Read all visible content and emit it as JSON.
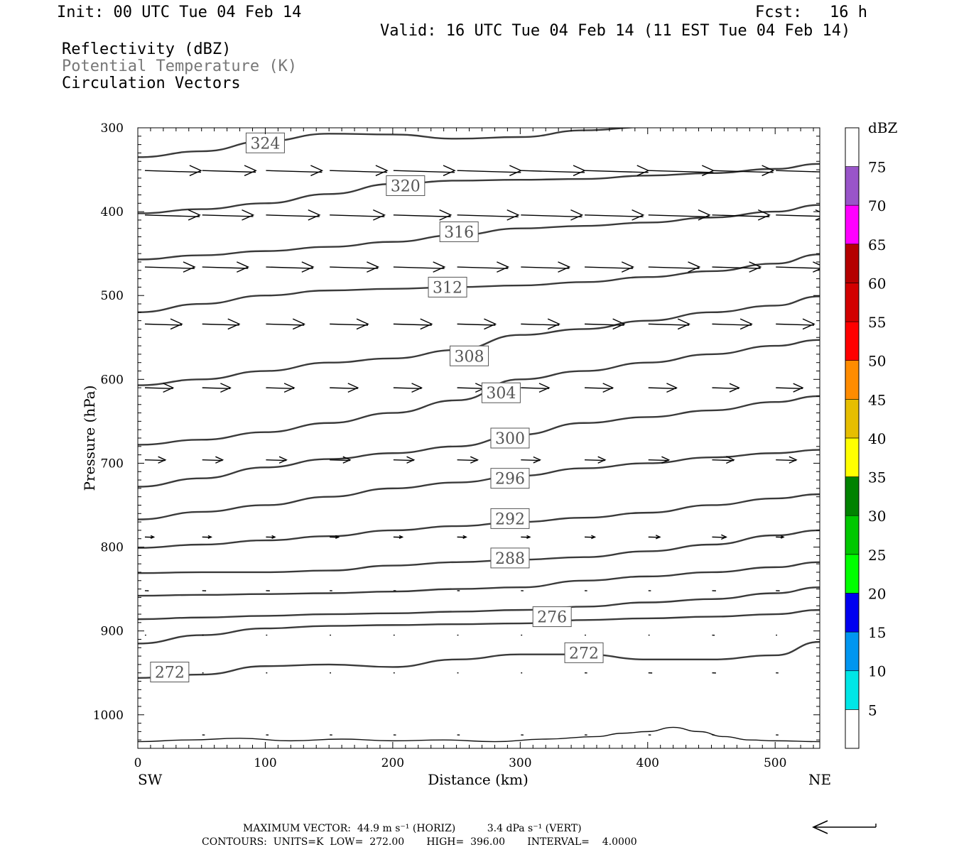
{
  "header": {
    "init": "Init: 00 UTC Tue 04 Feb 14",
    "fcst_label": "Fcst:",
    "fcst_value": "16 h",
    "valid": "Valid: 16 UTC Tue 04 Feb 14 (11 EST Tue 04 Feb 14)",
    "field1": "Reflectivity (dBZ)",
    "field2": "Potential Temperature (K)",
    "field3": "Circulation Vectors"
  },
  "footer": {
    "line1": "MAXIMUM VECTOR:  44.9 m s⁻¹ (HORIZ)          3.4 dPa s⁻¹ (VERT)",
    "line2": "CONTOURS:  UNITS=K  LOW=  272.00       HIGH=  396.00       INTERVAL=    4.0000"
  },
  "colors": {
    "contour": "#3a3a3a",
    "potential_temperature_label": "#777777"
  },
  "chart_data": {
    "type": "line",
    "xlabel": "Distance (km)",
    "ylabel": "Pressure (hPa)",
    "xlim": [
      0,
      535
    ],
    "ylim": [
      1040,
      300
    ],
    "y_scale": "pressure (top 300 hPa, decreasing upward)",
    "xticks": [
      0,
      100,
      200,
      300,
      400,
      500
    ],
    "yticks": [
      300,
      400,
      500,
      600,
      700,
      800,
      900,
      1000
    ],
    "x_endpoints": {
      "left": "SW",
      "right": "NE"
    },
    "colorbar": {
      "unit": "dBZ",
      "labels": [
        "5",
        "10",
        "15",
        "20",
        "25",
        "30",
        "35",
        "40",
        "45",
        "50",
        "55",
        "60",
        "65",
        "70",
        "75"
      ],
      "colors": [
        "#ffffff",
        "#00e6e6",
        "#0096f0",
        "#0000f0",
        "#00ff00",
        "#00c800",
        "#008200",
        "#ffff00",
        "#e6be00",
        "#ff8c00",
        "#ff0000",
        "#d20000",
        "#b40000",
        "#ff00ff",
        "#9955c9",
        "#ffffff"
      ]
    },
    "series": [
      {
        "label": "324",
        "x": [
          0,
          50,
          100,
          150,
          200,
          250,
          300,
          350,
          400
        ],
        "y": [
          335,
          328,
          316,
          307,
          308,
          313,
          311,
          303,
          299
        ],
        "label_at": [
          100,
          318
        ]
      },
      {
        "label": "320",
        "x": [
          0,
          50,
          100,
          150,
          200,
          250,
          300,
          350,
          400,
          450,
          500,
          535
        ],
        "y": [
          402,
          397,
          390,
          379,
          367,
          363,
          362,
          361,
          357,
          354,
          349,
          343
        ],
        "label_at": [
          210,
          369
        ]
      },
      {
        "label": "316",
        "x": [
          0,
          50,
          100,
          150,
          200,
          250,
          300,
          350,
          400,
          450,
          500,
          535
        ],
        "y": [
          457,
          452,
          447,
          442,
          436,
          428,
          420,
          417,
          413,
          407,
          400,
          392
        ],
        "label_at": [
          252,
          424
        ]
      },
      {
        "label": "312",
        "x": [
          0,
          50,
          100,
          150,
          200,
          250,
          300,
          350,
          400,
          450,
          500,
          535
        ],
        "y": [
          520,
          510,
          500,
          494,
          492,
          490,
          488,
          484,
          478,
          471,
          462,
          451
        ],
        "label_at": [
          243,
          490
        ]
      },
      {
        "label": "308",
        "x": [
          0,
          50,
          100,
          150,
          200,
          250,
          300,
          350,
          400,
          450,
          500,
          535
        ],
        "y": [
          607,
          600,
          590,
          580,
          575,
          565,
          547,
          540,
          530,
          520,
          512,
          501
        ],
        "label_at": [
          260,
          572
        ]
      },
      {
        "label": "304",
        "x": [
          0,
          50,
          100,
          150,
          200,
          250,
          300,
          350,
          400,
          450,
          500,
          535
        ],
        "y": [
          678,
          672,
          663,
          652,
          640,
          625,
          600,
          590,
          580,
          570,
          560,
          553
        ],
        "label_at": [
          285,
          616
        ]
      },
      {
        "label": "300",
        "x": [
          0,
          50,
          100,
          150,
          200,
          250,
          300,
          350,
          400,
          450,
          500,
          535
        ],
        "y": [
          728,
          718,
          705,
          695,
          688,
          680,
          666,
          652,
          645,
          637,
          627,
          620
        ],
        "label_at": [
          292,
          670
        ]
      },
      {
        "label": "296",
        "x": [
          0,
          50,
          100,
          150,
          200,
          250,
          300,
          350,
          400,
          450,
          500,
          535
        ],
        "y": [
          767,
          758,
          750,
          740,
          730,
          723,
          715,
          706,
          700,
          693,
          688,
          684
        ],
        "label_at": [
          292,
          718
        ]
      },
      {
        "label": "292",
        "x": [
          0,
          50,
          100,
          150,
          200,
          250,
          300,
          350,
          400,
          450,
          500,
          535
        ],
        "y": [
          801,
          797,
          792,
          787,
          780,
          775,
          770,
          765,
          759,
          750,
          742,
          737
        ],
        "label_at": [
          292,
          766
        ]
      },
      {
        "label": "288",
        "x": [
          0,
          50,
          100,
          150,
          200,
          250,
          300,
          350,
          400,
          450,
          500,
          535
        ],
        "y": [
          831,
          830,
          830,
          828,
          822,
          818,
          815,
          812,
          805,
          797,
          786,
          780
        ],
        "label_at": [
          292,
          813
        ]
      },
      {
        "label": "",
        "x": [
          0,
          50,
          100,
          150,
          200,
          250,
          300,
          350,
          400,
          450,
          500,
          535
        ],
        "y": [
          858,
          857,
          856,
          855,
          853,
          850,
          848,
          840,
          835,
          830,
          824,
          818
        ],
        "label_at": null
      },
      {
        "label": "",
        "x": [
          0,
          50,
          100,
          150,
          200,
          250,
          300,
          350,
          400,
          450,
          500,
          535
        ],
        "y": [
          886,
          884,
          882,
          880,
          879,
          877,
          875,
          871,
          866,
          862,
          855,
          848
        ],
        "label_at": null
      },
      {
        "label": "276",
        "x": [
          0,
          50,
          100,
          150,
          200,
          250,
          300,
          350,
          400,
          450,
          500,
          535
        ],
        "y": [
          915,
          905,
          897,
          894,
          893,
          892,
          891,
          887,
          885,
          883,
          880,
          875
        ],
        "label_at": [
          325,
          883
        ]
      },
      {
        "label": "272",
        "x": [
          0,
          50,
          100,
          150,
          200,
          250,
          300,
          350,
          400,
          450,
          500,
          535
        ],
        "y": [
          956,
          952,
          942,
          940,
          943,
          934,
          928,
          928,
          934,
          934,
          929,
          913
        ],
        "label_at": [
          350,
          926
        ]
      },
      {
        "label": "272",
        "x": [
          12
        ],
        "y": [
          949
        ],
        "label_at": [
          25,
          949
        ]
      },
      {
        "label": "",
        "x": [
          0,
          40,
          80,
          120,
          160,
          200,
          240,
          280,
          320,
          360,
          380,
          400,
          420,
          440,
          460,
          480,
          500,
          535
        ],
        "y": [
          1032,
          1030,
          1028,
          1031,
          1029,
          1031,
          1030,
          1032,
          1029,
          1026,
          1022,
          1020,
          1015,
          1020,
          1026,
          1030,
          1031,
          1032
        ],
        "label_at": null
      }
    ],
    "vectors": {
      "description": "circulation vector rows, values are arrow lengths in km-equivalent",
      "rows": [
        {
          "p": 351,
          "x": [
            5,
            50,
            100,
            150,
            200,
            250,
            300,
            350,
            400,
            450,
            500
          ],
          "u": [
            44,
            42,
            44,
            45,
            48,
            50,
            50,
            50,
            51,
            48,
            48
          ]
        },
        {
          "p": 404,
          "x": [
            5,
            50,
            100,
            150,
            200,
            250,
            300,
            350,
            400,
            450,
            500
          ],
          "u": [
            43,
            40,
            42,
            43,
            45,
            48,
            48,
            46,
            48,
            45,
            40
          ]
        },
        {
          "p": 466,
          "x": [
            5,
            50,
            100,
            150,
            200,
            250,
            300,
            350,
            400,
            450,
            500
          ],
          "u": [
            39,
            36,
            37,
            38,
            40,
            40,
            38,
            38,
            40,
            38,
            38
          ]
        },
        {
          "p": 534,
          "x": [
            5,
            50,
            100,
            150,
            200,
            250,
            300,
            350,
            400,
            450,
            500
          ],
          "u": [
            29,
            29,
            30,
            30,
            30,
            30,
            30,
            31,
            32,
            31,
            30
          ]
        },
        {
          "p": 610,
          "x": [
            5,
            50,
            100,
            150,
            200,
            250,
            300,
            350,
            400,
            450,
            500
          ],
          "u": [
            22,
            22,
            22,
            22,
            22,
            22,
            22,
            22,
            22,
            21,
            21
          ]
        },
        {
          "p": 696,
          "x": [
            5,
            50,
            100,
            150,
            200,
            250,
            300,
            350,
            400,
            450,
            500
          ],
          "u": [
            16,
            16,
            16,
            16,
            16,
            16,
            15,
            16,
            16,
            17,
            16
          ]
        },
        {
          "p": 788,
          "x": [
            5,
            50,
            100,
            150,
            200,
            250,
            300,
            350,
            400,
            450,
            500
          ],
          "u": [
            7,
            7,
            7,
            7,
            7,
            7,
            7,
            8,
            9,
            11,
            6
          ]
        },
        {
          "p": 852,
          "x": [
            5,
            50,
            100,
            150,
            200,
            250,
            300,
            350,
            400,
            450,
            500
          ],
          "u": [
            3,
            3,
            3,
            2,
            2,
            2,
            2,
            2,
            2,
            3,
            3
          ]
        },
        {
          "p": 905,
          "x": [
            5,
            50,
            100,
            150,
            200,
            250,
            300,
            350,
            400,
            450,
            500
          ],
          "u": [
            1,
            1,
            1,
            1,
            1,
            1,
            1,
            1,
            1,
            2,
            1
          ]
        },
        {
          "p": 950,
          "x": [
            50,
            100,
            150,
            200,
            250,
            300,
            350,
            400,
            450,
            500
          ],
          "u": [
            1,
            1,
            1,
            1,
            1,
            1,
            2,
            3,
            3,
            2
          ]
        },
        {
          "p": 1024,
          "x": [
            50,
            100,
            150,
            200,
            250,
            300,
            350,
            400,
            450,
            500
          ],
          "u": [
            2,
            2,
            2,
            2,
            2,
            2,
            2,
            2,
            2,
            2
          ]
        }
      ]
    }
  }
}
